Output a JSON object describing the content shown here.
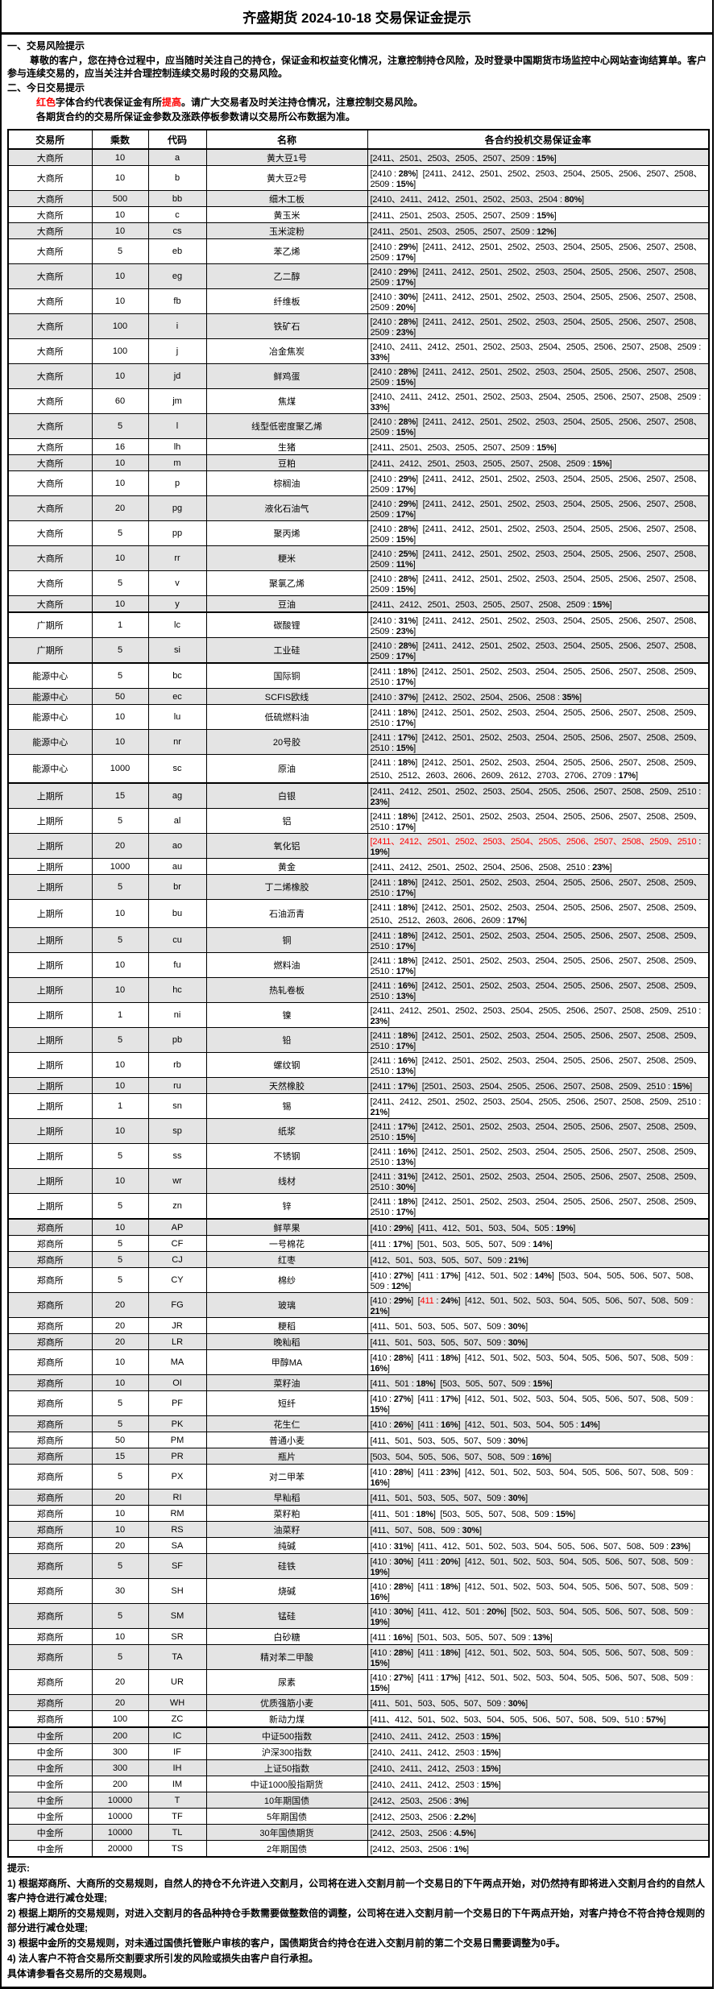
{
  "title": "齐盛期货 2024-10-18 交易保证金提示",
  "colors": {
    "accent_red": "#fe0000",
    "row_alt": "#e4e4e4",
    "border": "#000000"
  },
  "sections": {
    "s1_heading": "一、交易风险提示",
    "s1_para": "尊敬的客户，您在持仓过程中，应当随时关注自己的持仓，保证金和权益变化情况，注意控制持仓风险，及时登录中国期货市场监控中心网站查询结算单。客户参与连续交易的，应当关注并合理控制连续交易时段的交易风险。",
    "s2_heading": "二、今日交易提示",
    "s2_line1": "##红色##字体合约代表保证金有所##提高##。请广大交易者及时关注持仓情况，注意控制交易风险。",
    "s2_line2": "各期货合约的交易所保证金参数及涨跌停板参数请以交易所公布数据为准。"
  },
  "table": {
    "headers": [
      "交易所",
      "乘数",
      "代码",
      "名称",
      "各合约投机交易保证金率"
    ],
    "rows": [
      {
        "e": "大商所",
        "m": "10",
        "c": "a",
        "n": "黄大豆1号",
        "r": "[2411、2501、2503、2505、2507、2509 : **15%**]"
      },
      {
        "e": "大商所",
        "m": "10",
        "c": "b",
        "n": "黄大豆2号",
        "r": "[2410 : **28%**]  [2411、2412、2501、2502、2503、2504、2505、2506、2507、2508、2509 : **15%**]"
      },
      {
        "e": "大商所",
        "m": "500",
        "c": "bb",
        "n": "细木工板",
        "r": "[2410、2411、2412、2501、2502、2503、2504 : **80%**]"
      },
      {
        "e": "大商所",
        "m": "10",
        "c": "c",
        "n": "黄玉米",
        "r": "[2411、2501、2503、2505、2507、2509 : **15%**]"
      },
      {
        "e": "大商所",
        "m": "10",
        "c": "cs",
        "n": "玉米淀粉",
        "r": "[2411、2501、2503、2505、2507、2509 : **12%**]"
      },
      {
        "e": "大商所",
        "m": "5",
        "c": "eb",
        "n": "苯乙烯",
        "r": "[2410 : **29%**]  [2411、2412、2501、2502、2503、2504、2505、2506、2507、2508、2509 : **17%**]"
      },
      {
        "e": "大商所",
        "m": "10",
        "c": "eg",
        "n": "乙二醇",
        "r": "[2410 : **29%**]  [2411、2412、2501、2502、2503、2504、2505、2506、2507、2508、2509 : **17%**]"
      },
      {
        "e": "大商所",
        "m": "10",
        "c": "fb",
        "n": "纤维板",
        "r": "[2410 : **30%**]  [2411、2412、2501、2502、2503、2504、2505、2506、2507、2508、2509 : **20%**]"
      },
      {
        "e": "大商所",
        "m": "100",
        "c": "i",
        "n": "铁矿石",
        "r": "[2410 : **28%**]  [2411、2412、2501、2502、2503、2504、2505、2506、2507、2508、2509 : **23%**]"
      },
      {
        "e": "大商所",
        "m": "100",
        "c": "j",
        "n": "冶金焦炭",
        "r": "[2410、2411、2412、2501、2502、2503、2504、2505、2506、2507、2508、2509 : **33%**]"
      },
      {
        "e": "大商所",
        "m": "10",
        "c": "jd",
        "n": "鲜鸡蛋",
        "r": "[2410 : **28%**]  [2411、2412、2501、2502、2503、2504、2505、2506、2507、2508、2509 : **15%**]"
      },
      {
        "e": "大商所",
        "m": "60",
        "c": "jm",
        "n": "焦煤",
        "r": "[2410、2411、2412、2501、2502、2503、2504、2505、2506、2507、2508、2509 : **33%**]"
      },
      {
        "e": "大商所",
        "m": "5",
        "c": "l",
        "n": "线型低密度聚乙烯",
        "r": "[2410 : **28%**]  [2411、2412、2501、2502、2503、2504、2505、2506、2507、2508、2509 : **15%**]"
      },
      {
        "e": "大商所",
        "m": "16",
        "c": "lh",
        "n": "生猪",
        "r": "[2411、2501、2503、2505、2507、2509 : **15%**]"
      },
      {
        "e": "大商所",
        "m": "10",
        "c": "m",
        "n": "豆粕",
        "r": "[2411、2412、2501、2503、2505、2507、2508、2509 : **15%**]"
      },
      {
        "e": "大商所",
        "m": "10",
        "c": "p",
        "n": "棕榈油",
        "r": "[2410 : **29%**]  [2411、2412、2501、2502、2503、2504、2505、2506、2507、2508、2509 : **17%**]"
      },
      {
        "e": "大商所",
        "m": "20",
        "c": "pg",
        "n": "液化石油气",
        "r": "[2410 : **29%**]  [2411、2412、2501、2502、2503、2504、2505、2506、2507、2508、2509 : **17%**]"
      },
      {
        "e": "大商所",
        "m": "5",
        "c": "pp",
        "n": "聚丙烯",
        "r": "[2410 : **28%**]  [2411、2412、2501、2502、2503、2504、2505、2506、2507、2508、2509 : **15%**]"
      },
      {
        "e": "大商所",
        "m": "10",
        "c": "rr",
        "n": "粳米",
        "r": "[2410 : **25%**]  [2411、2412、2501、2502、2503、2504、2505、2506、2507、2508、2509 : **11%**]"
      },
      {
        "e": "大商所",
        "m": "5",
        "c": "v",
        "n": "聚氯乙烯",
        "r": "[2410 : **28%**]  [2411、2412、2501、2502、2503、2504、2505、2506、2507、2508、2509 : **15%**]"
      },
      {
        "e": "大商所",
        "m": "10",
        "c": "y",
        "n": "豆油",
        "r": "[2411、2412、2501、2503、2505、2507、2508、2509 : **15%**]"
      },
      {
        "e": "广期所",
        "m": "1",
        "c": "lc",
        "n": "碳酸锂",
        "r": "[2410 : **31%**]  [2411、2412、2501、2502、2503、2504、2505、2506、2507、2508、2509 : **23%**]"
      },
      {
        "e": "广期所",
        "m": "5",
        "c": "si",
        "n": "工业硅",
        "r": "[2410 : **28%**]  [2411、2412、2501、2502、2503、2504、2505、2506、2507、2508、2509 : **17%**]"
      },
      {
        "e": "能源中心",
        "m": "5",
        "c": "bc",
        "n": "国际铜",
        "r": "[2411 : **18%**]  [2412、2501、2502、2503、2504、2505、2506、2507、2508、2509、2510 : **17%**]"
      },
      {
        "e": "能源中心",
        "m": "50",
        "c": "ec",
        "n": "SCFIS欧线",
        "r": "[2410 : **37%**]  [2412、2502、2504、2506、2508 : **35%**]"
      },
      {
        "e": "能源中心",
        "m": "10",
        "c": "lu",
        "n": "低硫燃料油",
        "r": "[2411 : **18%**]  [2412、2501、2502、2503、2504、2505、2506、2507、2508、2509、2510 : **17%**]"
      },
      {
        "e": "能源中心",
        "m": "10",
        "c": "nr",
        "n": "20号胶",
        "r": "[2411 : **17%**]  [2412、2501、2502、2503、2504、2505、2506、2507、2508、2509、2510 : **15%**]"
      },
      {
        "e": "能源中心",
        "m": "1000",
        "c": "sc",
        "n": "原油",
        "r": "[2411 : **18%**]  [2412、2501、2502、2503、2504、2505、2506、2507、2508、2509、2510、2512、2603、2606、2609、2612、2703、2706、2709 : **17%**]"
      },
      {
        "e": "上期所",
        "m": "15",
        "c": "ag",
        "n": "白银",
        "r": "[2411、2412、2501、2502、2503、2504、2505、2506、2507、2508、2509、2510 : **23%**]"
      },
      {
        "e": "上期所",
        "m": "5",
        "c": "al",
        "n": "铝",
        "r": "[2411 : **18%**]  [2412、2501、2502、2503、2504、2505、2506、2507、2508、2509、2510 : **17%**]"
      },
      {
        "e": "上期所",
        "m": "20",
        "c": "ao",
        "n": "氧化铝",
        "r": "##[2411、2412、2501、2502、2503、2504、2505、2506、2507、2508、2509、2510## : **19%**]"
      },
      {
        "e": "上期所",
        "m": "1000",
        "c": "au",
        "n": "黄金",
        "r": "[2411、2412、2501、2502、2504、2506、2508、2510 : **23%**]"
      },
      {
        "e": "上期所",
        "m": "5",
        "c": "br",
        "n": "丁二烯橡胶",
        "r": "[2411 : **18%**]  [2412、2501、2502、2503、2504、2505、2506、2507、2508、2509、2510 : **17%**]"
      },
      {
        "e": "上期所",
        "m": "10",
        "c": "bu",
        "n": "石油沥青",
        "r": "[2411 : **18%**]  [2412、2501、2502、2503、2504、2505、2506、2507、2508、2509、2510、2512、2603、2606、2609 : **17%**]"
      },
      {
        "e": "上期所",
        "m": "5",
        "c": "cu",
        "n": "铜",
        "r": "[2411 : **18%**]  [2412、2501、2502、2503、2504、2505、2506、2507、2508、2509、2510 : **17%**]"
      },
      {
        "e": "上期所",
        "m": "10",
        "c": "fu",
        "n": "燃料油",
        "r": "[2411 : **18%**]  [2412、2501、2502、2503、2504、2505、2506、2507、2508、2509、2510 : **17%**]"
      },
      {
        "e": "上期所",
        "m": "10",
        "c": "hc",
        "n": "热轧卷板",
        "r": "[2411 : **16%**]  [2412、2501、2502、2503、2504、2505、2506、2507、2508、2509、2510 : **13%**]"
      },
      {
        "e": "上期所",
        "m": "1",
        "c": "ni",
        "n": "镍",
        "r": "[2411、2412、2501、2502、2503、2504、2505、2506、2507、2508、2509、2510 : **23%**]"
      },
      {
        "e": "上期所",
        "m": "5",
        "c": "pb",
        "n": "铅",
        "r": "[2411 : **18%**]  [2412、2501、2502、2503、2504、2505、2506、2507、2508、2509、2510 : **17%**]"
      },
      {
        "e": "上期所",
        "m": "10",
        "c": "rb",
        "n": "螺纹钢",
        "r": "[2411 : **16%**]  [2412、2501、2502、2503、2504、2505、2506、2507、2508、2509、2510 : **13%**]"
      },
      {
        "e": "上期所",
        "m": "10",
        "c": "ru",
        "n": "天然橡胶",
        "r": "[2411 : **17%**]  [2501、2503、2504、2505、2506、2507、2508、2509、2510 : **15%**]"
      },
      {
        "e": "上期所",
        "m": "1",
        "c": "sn",
        "n": "锡",
        "r": "[2411、2412、2501、2502、2503、2504、2505、2506、2507、2508、2509、2510 : **21%**]"
      },
      {
        "e": "上期所",
        "m": "10",
        "c": "sp",
        "n": "纸浆",
        "r": "[2411 : **17%**]  [2412、2501、2502、2503、2504、2505、2506、2507、2508、2509、2510 : **15%**]"
      },
      {
        "e": "上期所",
        "m": "5",
        "c": "ss",
        "n": "不锈钢",
        "r": "[2411 : **16%**]  [2412、2501、2502、2503、2504、2505、2506、2507、2508、2509、2510 : **13%**]"
      },
      {
        "e": "上期所",
        "m": "10",
        "c": "wr",
        "n": "线材",
        "r": "[2411 : **31%**]  [2412、2501、2502、2503、2504、2505、2506、2507、2508、2509、2510 : **30%**]"
      },
      {
        "e": "上期所",
        "m": "5",
        "c": "zn",
        "n": "锌",
        "r": "[2411 : **18%**]  [2412、2501、2502、2503、2504、2505、2506、2507、2508、2509、2510 : **17%**]"
      },
      {
        "e": "郑商所",
        "m": "10",
        "c": "AP",
        "n": "鲜苹果",
        "r": "[410 : **29%**]  [411、412、501、503、504、505 : **19%**]"
      },
      {
        "e": "郑商所",
        "m": "5",
        "c": "CF",
        "n": "一号棉花",
        "r": "[411 : **17%**]  [501、503、505、507、509 : **14%**]"
      },
      {
        "e": "郑商所",
        "m": "5",
        "c": "CJ",
        "n": "红枣",
        "r": "[412、501、503、505、507、509 : **21%**]"
      },
      {
        "e": "郑商所",
        "m": "5",
        "c": "CY",
        "n": "棉纱",
        "r": "[410 : **27%**]  [411 : **17%**]  [412、501、502 : **14%**]  [503、504、505、506、507、508、509 : **12%**]"
      },
      {
        "e": "郑商所",
        "m": "20",
        "c": "FG",
        "n": "玻璃",
        "r": "[410 : **29%**]  [##411## : **24%**]  [412、501、502、503、504、505、506、507、508、509 : **21%**]"
      },
      {
        "e": "郑商所",
        "m": "20",
        "c": "JR",
        "n": "粳稻",
        "r": "[411、501、503、505、507、509 : **30%**]"
      },
      {
        "e": "郑商所",
        "m": "20",
        "c": "LR",
        "n": "晚籼稻",
        "r": "[411、501、503、505、507、509 : **30%**]"
      },
      {
        "e": "郑商所",
        "m": "10",
        "c": "MA",
        "n": "甲醇MA",
        "r": "[410 : **28%**]  [411 : **18%**]  [412、501、502、503、504、505、506、507、508、509 : **16%**]"
      },
      {
        "e": "郑商所",
        "m": "10",
        "c": "OI",
        "n": "菜籽油",
        "r": "[411、501 : **18%**]  [503、505、507、509 : **15%**]"
      },
      {
        "e": "郑商所",
        "m": "5",
        "c": "PF",
        "n": "短纤",
        "r": "[410 : **27%**]  [411 : **17%**]  [412、501、502、503、504、505、506、507、508、509 : **15%**]"
      },
      {
        "e": "郑商所",
        "m": "5",
        "c": "PK",
        "n": "花生仁",
        "r": "[410 : **26%**]  [411 : **16%**]  [412、501、503、504、505 : **14%**]"
      },
      {
        "e": "郑商所",
        "m": "50",
        "c": "PM",
        "n": "普通小麦",
        "r": "[411、501、503、505、507、509 : **30%**]"
      },
      {
        "e": "郑商所",
        "m": "15",
        "c": "PR",
        "n": "瓶片",
        "r": "[503、504、505、506、507、508、509 : **16%**]"
      },
      {
        "e": "郑商所",
        "m": "5",
        "c": "PX",
        "n": "对二甲苯",
        "r": "[410 : **28%**]  [411 : **23%**]  [412、501、502、503、504、505、506、507、508、509 : **16%**]"
      },
      {
        "e": "郑商所",
        "m": "20",
        "c": "RI",
        "n": "早籼稻",
        "r": "[411、501、503、505、507、509 : **30%**]"
      },
      {
        "e": "郑商所",
        "m": "10",
        "c": "RM",
        "n": "菜籽粕",
        "r": "[411、501 : **18%**]  [503、505、507、508、509 : **15%**]"
      },
      {
        "e": "郑商所",
        "m": "10",
        "c": "RS",
        "n": "油菜籽",
        "r": "[411、507、508、509 : **30%**]"
      },
      {
        "e": "郑商所",
        "m": "20",
        "c": "SA",
        "n": "纯碱",
        "r": "[410 : **31%**]  [411、412、501、502、503、504、505、506、507、508、509 : **23%**]"
      },
      {
        "e": "郑商所",
        "m": "5",
        "c": "SF",
        "n": "硅铁",
        "r": "[410 : **30%**]  [411 : **20%**]  [412、501、502、503、504、505、506、507、508、509 : **19%**]"
      },
      {
        "e": "郑商所",
        "m": "30",
        "c": "SH",
        "n": "烧碱",
        "r": "[410 : **28%**]  [411 : **18%**]  [412、501、502、503、504、505、506、507、508、509 : **16%**]"
      },
      {
        "e": "郑商所",
        "m": "5",
        "c": "SM",
        "n": "锰硅",
        "r": "[410 : **30%**]  [411、412、501 : **20%**]  [502、503、504、505、506、507、508、509 : **19%**]"
      },
      {
        "e": "郑商所",
        "m": "10",
        "c": "SR",
        "n": "白砂糖",
        "r": "[411 : **16%**]  [501、503、505、507、509 : **13%**]"
      },
      {
        "e": "郑商所",
        "m": "5",
        "c": "TA",
        "n": "精对苯二甲酸",
        "r": "[410 : **28%**]  [411 : **18%**]  [412、501、502、503、504、505、506、507、508、509 : **15%**]"
      },
      {
        "e": "郑商所",
        "m": "20",
        "c": "UR",
        "n": "尿素",
        "r": "[410 : **27%**]  [411 : **17%**]  [412、501、502、503、504、505、506、507、508、509 : **15%**]"
      },
      {
        "e": "郑商所",
        "m": "20",
        "c": "WH",
        "n": "优质强筋小麦",
        "r": "[411、501、503、505、507、509 : **30%**]"
      },
      {
        "e": "郑商所",
        "m": "100",
        "c": "ZC",
        "n": "新动力煤",
        "r": "[411、412、501、502、503、504、505、506、507、508、509、510 : **57%**]"
      },
      {
        "e": "中金所",
        "m": "200",
        "c": "IC",
        "n": "中证500指数",
        "r": "[2410、2411、2412、2503 : **15%**]"
      },
      {
        "e": "中金所",
        "m": "300",
        "c": "IF",
        "n": "沪深300指数",
        "r": "[2410、2411、2412、2503 : **15%**]"
      },
      {
        "e": "中金所",
        "m": "300",
        "c": "IH",
        "n": "上证50指数",
        "r": "[2410、2411、2412、2503 : **15%**]"
      },
      {
        "e": "中金所",
        "m": "200",
        "c": "IM",
        "n": "中证1000股指期货",
        "r": "[2410、2411、2412、2503 : **15%**]"
      },
      {
        "e": "中金所",
        "m": "10000",
        "c": "T",
        "n": "10年期国债",
        "r": "[2412、2503、2506 : **3%**]"
      },
      {
        "e": "中金所",
        "m": "10000",
        "c": "TF",
        "n": "5年期国债",
        "r": "[2412、2503、2506 : **2.2%**]"
      },
      {
        "e": "中金所",
        "m": "10000",
        "c": "TL",
        "n": "30年国债期货",
        "r": "[2412、2503、2506 : **4.5%**]"
      },
      {
        "e": "中金所",
        "m": "20000",
        "c": "TS",
        "n": "2年期国债",
        "r": "[2412、2503、2506 : **1%**]"
      }
    ]
  },
  "notes": {
    "heading": "提示:",
    "lines": [
      "1) 根据郑商所、大商所的交易规则，自然人的持仓不允许进入交割月，公司将在进入交割月前一个交易日的下午两点开始，对仍然持有即将进入交割月合约的自然人客户持仓进行减仓处理;",
      "2) 根据上期所的交易规则，对进入交割月的各品种持仓手数需要做整数倍的调整，公司将在进入交割月前一个交易日的下午两点开始，对客户持仓不符合持仓规则的部分进行减仓处理;",
      "3) 根据中金所的交易规则，对未通过国债托管账户审核的客户，国债期货合约持仓在进入交割月前的第二个交易日需要调整为0手。",
      "4) 法人客户不符合交易所交割要求所引发的风险或损失由客户自行承担。",
      "具体请参看各交易所的交易规则。"
    ]
  }
}
